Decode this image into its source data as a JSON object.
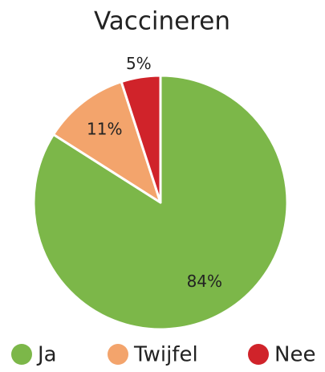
{
  "chart_data": {
    "type": "pie",
    "title": "Vaccineren",
    "categories": [
      "Ja",
      "Twijfel",
      "Nee"
    ],
    "values": [
      84,
      11,
      5
    ],
    "value_labels": [
      "84%",
      "11%",
      "5%"
    ],
    "colors": [
      "#7cb749",
      "#f3a46c",
      "#d0232a"
    ],
    "legend": "bottom"
  }
}
